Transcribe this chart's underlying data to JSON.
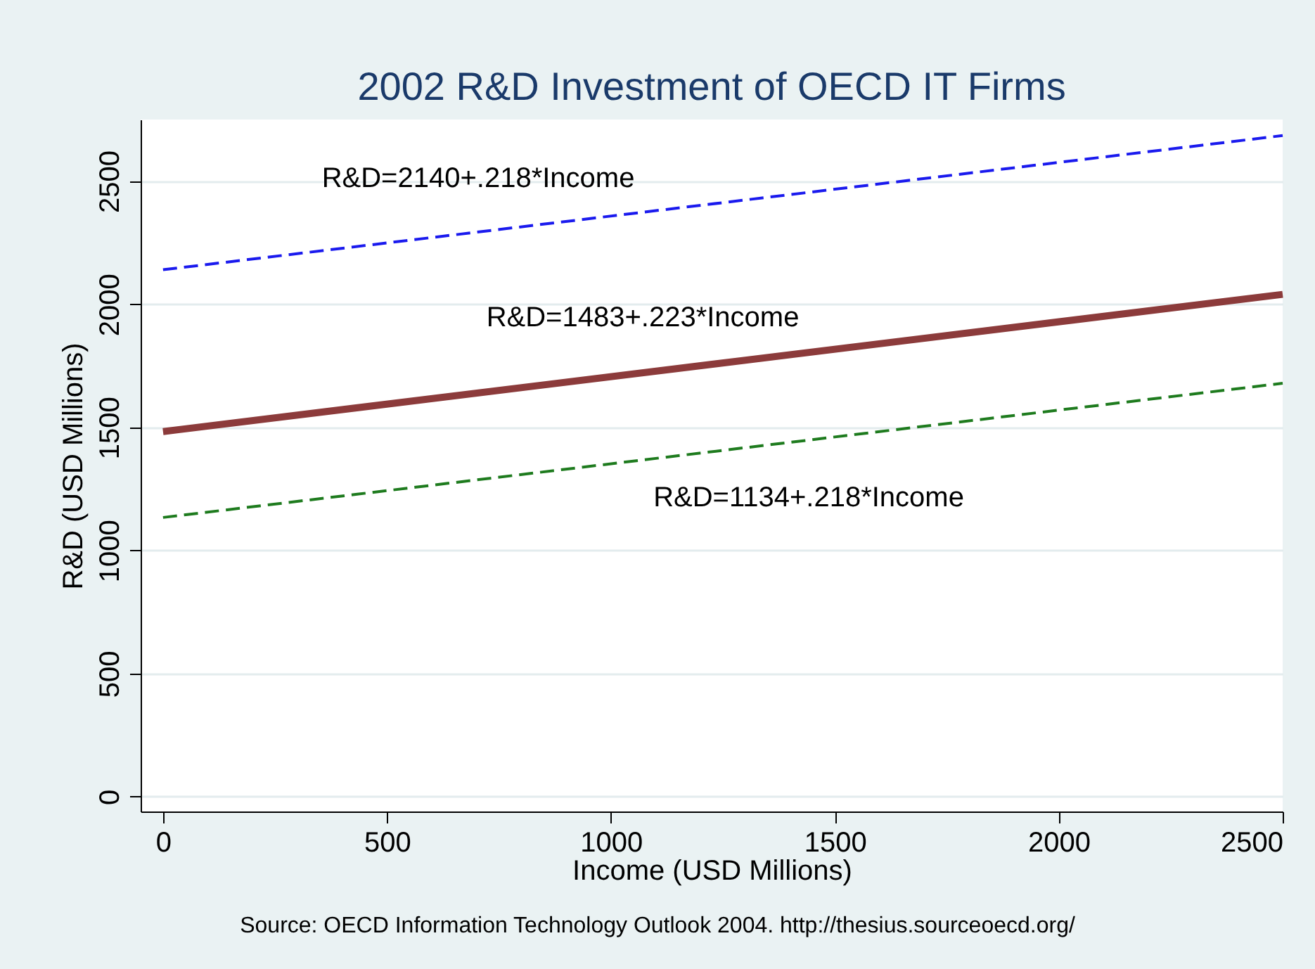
{
  "chart_data": {
    "type": "line",
    "title": "2002 R&D Investment of OECD IT Firms",
    "xlabel": "Income (USD Millions)",
    "ylabel": "R&D (USD Millions)",
    "xlim": [
      -50,
      2500
    ],
    "ylim": [
      -60,
      2750
    ],
    "xticks": [
      0,
      500,
      1000,
      1500,
      2000,
      2500
    ],
    "yticks": [
      0,
      500,
      1000,
      1500,
      2000,
      2500
    ],
    "grid": "y",
    "x": [
      0,
      2500
    ],
    "series": [
      {
        "values": [
          2140,
          2685
        ],
        "color": "#1a1aee",
        "line_style": "dashed"
      },
      {
        "values": [
          1483,
          2040
        ],
        "color": "#8c3b3b",
        "line_style": "solid"
      },
      {
        "values": [
          1134,
          1679
        ],
        "color": "#1e7b1e",
        "line_style": "dashed"
      }
    ],
    "annotations": [
      "R&D=2140+.218*Income",
      "R&D=1483+.223*Income",
      "R&D=1134+.218*Income",
      "Source: OECD Information Technology Outlook 2004. http://thesius.sourceoecd.org/"
    ]
  }
}
